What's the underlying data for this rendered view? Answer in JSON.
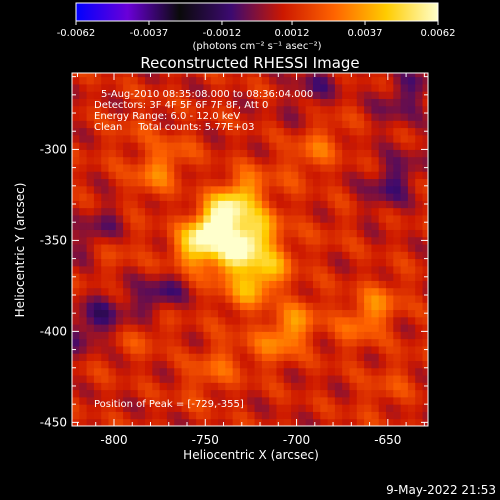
{
  "colorbar": {
    "tick_labels": [
      "-0.0062",
      "-0.0037",
      "-0.0012",
      "0.0012",
      "0.0037",
      "0.0062"
    ],
    "tick_values": [
      -0.0062,
      -0.0037,
      -0.0012,
      0.0012,
      0.0037,
      0.0062
    ],
    "unit_label": "(photons cm⁻² s⁻¹ asec⁻²)",
    "colors": [
      "#0000ff",
      "#6a00d8",
      "#0a0a0a",
      "#3c0a70",
      "#cc1800",
      "#ff6400",
      "#ffcc00",
      "#ffffcc"
    ]
  },
  "chart_data": {
    "type": "heatmap",
    "title": "Reconstructed RHESSI Image",
    "xlabel": "Heliocentric X (arcsec)",
    "ylabel": "Heliocentric Y (arcsec)",
    "xlim": [
      -823,
      -628
    ],
    "ylim": [
      -452,
      -258
    ],
    "x_ticks": [
      -800,
      -750,
      -700,
      -650
    ],
    "x_tick_labels": [
      "-800",
      "-750",
      "-700",
      "-650"
    ],
    "y_ticks": [
      -300,
      -350,
      -400,
      -450
    ],
    "y_tick_labels": [
      "-300",
      "-350",
      "-400",
      "-450"
    ],
    "colorscale_range": [
      -0.0062,
      0.0062
    ],
    "annotations": [
      "5-Aug-2010 08:35:08.000 to 08:36:04.000",
      "Detectors: 3F 4F 5F 6F 7F 8F, Att 0",
      "Energy Range: 6.0 - 12.0 keV",
      "Clean     Total counts: 5.77E+03"
    ],
    "peak_label": "Position of Peak = [-729,-355]",
    "peak": [
      -729,
      -355
    ],
    "sources": [
      {
        "x": -729,
        "y": -352,
        "value": 0.0062
      },
      {
        "x": -750,
        "y": -348,
        "value": 0.0058
      },
      {
        "x": -735,
        "y": -330,
        "value": 0.0045
      },
      {
        "x": -720,
        "y": -370,
        "value": 0.0044
      },
      {
        "x": -705,
        "y": -400,
        "value": 0.0036
      },
      {
        "x": -660,
        "y": -390,
        "value": 0.0032
      },
      {
        "x": -775,
        "y": -310,
        "value": 0.003
      },
      {
        "x": -780,
        "y": -395,
        "value": 0.0026
      },
      {
        "x": -690,
        "y": -300,
        "value": 0.0025
      },
      {
        "x": -745,
        "y": -420,
        "value": 0.0024
      },
      {
        "x": -800,
        "y": -355,
        "value": 0.0018
      },
      {
        "x": -790,
        "y": -290,
        "value": 0.0016
      },
      {
        "x": -650,
        "y": -430,
        "value": 0.0018
      },
      {
        "x": -675,
        "y": -340,
        "value": 0.0014
      },
      {
        "x": -815,
        "y": -420,
        "value": 0.0012
      }
    ],
    "negative_sources": [
      {
        "x": -776,
        "y": -383,
        "value": -0.0025
      },
      {
        "x": -812,
        "y": -395,
        "value": -0.0018
      },
      {
        "x": -648,
        "y": -318,
        "value": -0.0017
      },
      {
        "x": -640,
        "y": -270,
        "value": -0.0015
      },
      {
        "x": -690,
        "y": -265,
        "value": -0.0012
      },
      {
        "x": -808,
        "y": -345,
        "value": -0.0014
      }
    ]
  },
  "footer_timestamp": "9-May-2022 21:53"
}
